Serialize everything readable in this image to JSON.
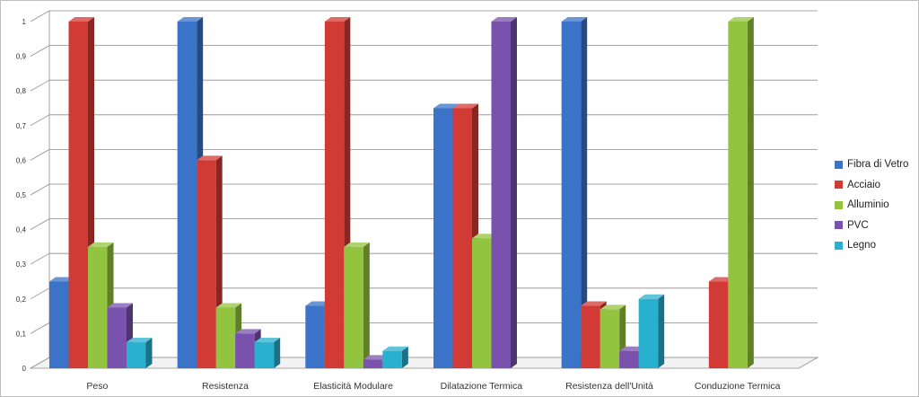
{
  "chart_data": {
    "type": "bar",
    "title": "",
    "xlabel": "",
    "ylabel": "",
    "ylim": [
      0,
      1
    ],
    "yticks": [
      "0",
      "0,1",
      "0,2",
      "0,3",
      "0,4",
      "0,5",
      "0,6",
      "0,7",
      "0,8",
      "0,9",
      "1"
    ],
    "categories": [
      "Peso",
      "Resistenza",
      "Elasticità Modulare",
      "Dilatazione Termica",
      "Resistenza dell'Unità",
      "Conduzione Termica"
    ],
    "series": [
      {
        "name": "Fibra di Vetro",
        "color": "#3a73c8",
        "values": [
          0.25,
          1.0,
          0.18,
          0.75,
          1.0,
          null
        ]
      },
      {
        "name": "Acciaio",
        "color": "#d23a36",
        "values": [
          1.0,
          0.6,
          1.0,
          0.75,
          0.18,
          0.25
        ]
      },
      {
        "name": "Alluminio",
        "color": "#93c43f",
        "values": [
          0.35,
          0.175,
          0.35,
          0.375,
          0.17,
          1.0
        ]
      },
      {
        "name": "PVC",
        "color": "#7952ad",
        "values": [
          0.175,
          0.1,
          0.025,
          1.0,
          0.05,
          null
        ]
      },
      {
        "name": "Legno",
        "color": "#29b0cf",
        "values": [
          0.075,
          0.075,
          0.05,
          null,
          0.2,
          null
        ]
      }
    ],
    "grid": true,
    "legend_position": "right",
    "style": "3d-columns"
  }
}
